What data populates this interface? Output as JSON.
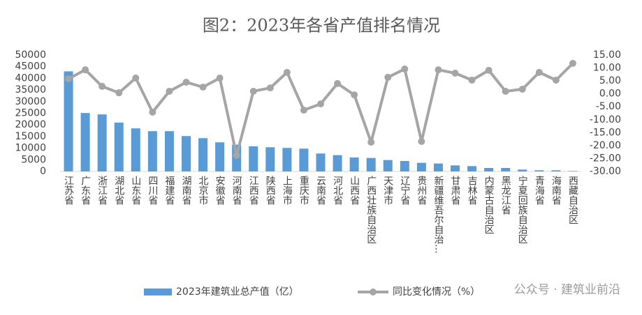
{
  "chart_data": {
    "type": "bar-line",
    "title": "图2：2023年各省产值排名情况",
    "categories": [
      "江苏省",
      "广东省",
      "浙江省",
      "湖北省",
      "山东省",
      "四川省",
      "福建省",
      "湖南省",
      "北京市",
      "安徽省",
      "河南省",
      "江西省",
      "陕西省",
      "上海市",
      "重庆市",
      "云南省",
      "河北省",
      "山西省",
      "广西壮族自治区",
      "天津市",
      "辽宁省",
      "贵州省",
      "新疆维吾尔自治…",
      "甘肃省",
      "吉林省",
      "内蒙古自治区",
      "黑龙江省",
      "宁夏回族自治区",
      "青海省",
      "海南省",
      "西藏自治区"
    ],
    "series": [
      {
        "name": "2023年建筑业总产值（亿）",
        "type": "bar",
        "color": "#5b9bd5",
        "values": [
          43000,
          25100,
          24500,
          21000,
          18500,
          17300,
          17300,
          15200,
          14300,
          12500,
          11500,
          10800,
          10400,
          10100,
          9800,
          7700,
          7000,
          6000,
          5800,
          4900,
          4500,
          3700,
          3400,
          2600,
          2300,
          1500,
          1500,
          800,
          500,
          500,
          200
        ]
      },
      {
        "name": "同比变化情况（%）",
        "type": "line",
        "axis": "y2",
        "color": "#a5a5a5",
        "values": [
          5.8,
          9.3,
          2.9,
          0.4,
          6.1,
          -7.1,
          1.0,
          4.5,
          2.6,
          6.1,
          -23.8,
          1.0,
          2.3,
          8.3,
          -6.3,
          -3.9,
          4.0,
          -0.4,
          -18.7,
          6.4,
          9.6,
          -18.4,
          9.3,
          8.0,
          5.3,
          9.1,
          1.0,
          1.8,
          8.3,
          5.3,
          11.8
        ]
      }
    ],
    "ylim": [
      0,
      50000
    ],
    "yticks": [
      0,
      5000,
      10000,
      15000,
      20000,
      25000,
      30000,
      35000,
      40000,
      45000,
      50000
    ],
    "y2lim": [
      -30,
      15
    ],
    "y2ticks": [
      {
        "value": 15,
        "label": "15.00"
      },
      {
        "value": 10,
        "label": "10.00"
      },
      {
        "value": 5,
        "label": "5.00"
      },
      {
        "value": 0,
        "label": "0.00"
      },
      {
        "value": -5,
        "label": "-5.00"
      },
      {
        "value": -10,
        "label": "-10.00"
      },
      {
        "value": -15,
        "label": "-15.00"
      },
      {
        "value": -20,
        "label": "-20.00"
      },
      {
        "value": -25,
        "label": "-25.00"
      },
      {
        "value": -30,
        "label": "-30.00"
      }
    ],
    "grid": false,
    "legend": "bottom",
    "watermark": "公众号 · 建筑业前沿"
  }
}
